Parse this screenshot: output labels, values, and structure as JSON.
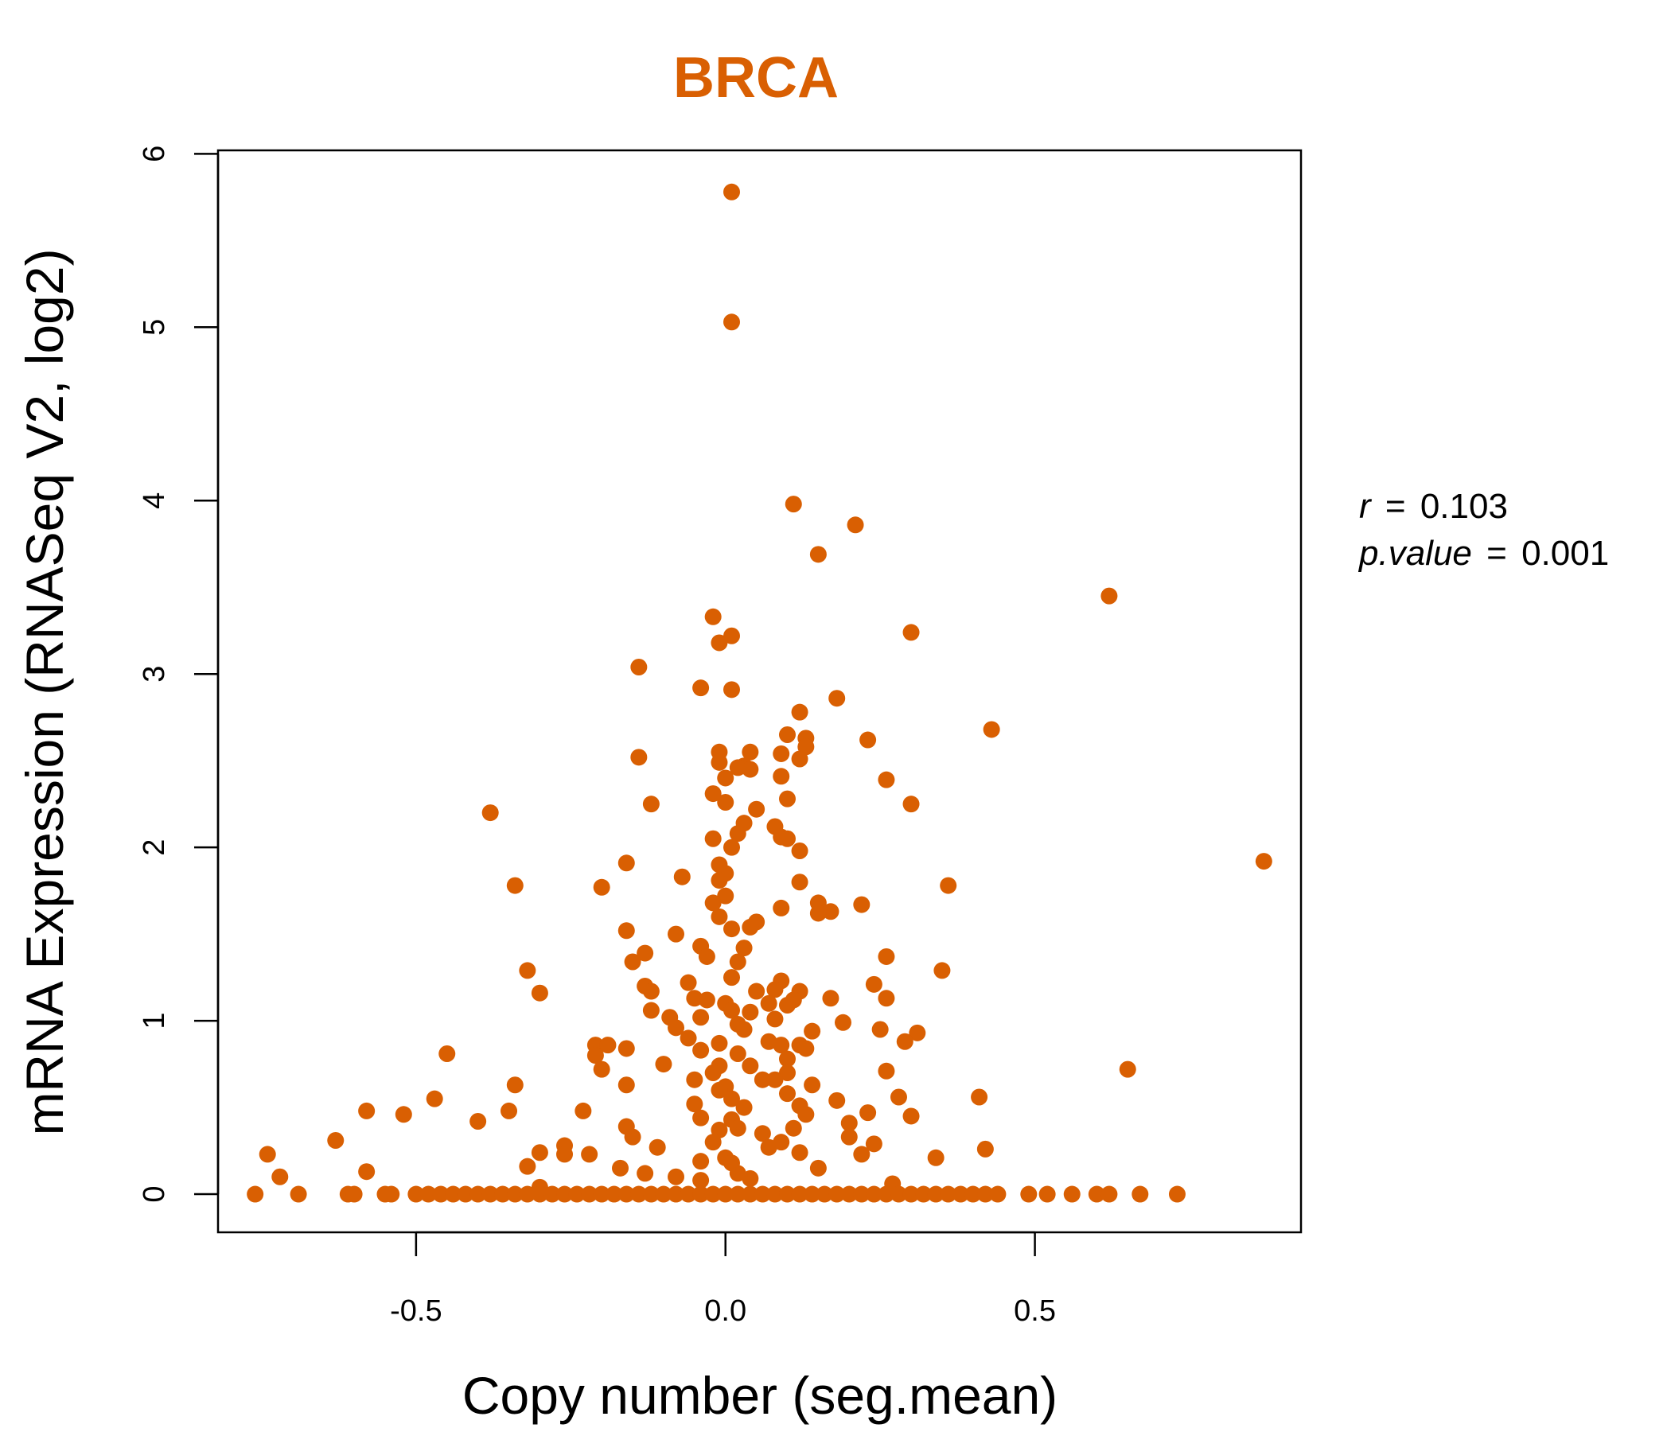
{
  "chart_data": {
    "type": "scatter",
    "title": "BRCA",
    "xlabel": "Copy number (seg.mean)",
    "ylabel": "mRNA Expression (RNASeq V2, log2)",
    "xlim": [
      -0.82,
      0.93
    ],
    "ylim": [
      -0.22,
      6.02
    ],
    "xticks": [
      -0.5,
      0.0,
      0.5
    ],
    "xtick_labels": [
      "-0.5",
      "0.0",
      "0.5"
    ],
    "yticks": [
      0,
      1,
      2,
      3,
      4,
      5,
      6
    ],
    "ytick_labels": [
      "0",
      "1",
      "2",
      "3",
      "4",
      "5",
      "6"
    ],
    "grid": false,
    "legend": "none",
    "color": "#D95F02",
    "annotation": {
      "r_label": "r",
      "r_value": "0.103",
      "p_label": "p.value",
      "p_value": "0.001"
    },
    "points": [
      [
        0.01,
        5.78
      ],
      [
        0.01,
        5.03
      ],
      [
        0.11,
        3.98
      ],
      [
        0.21,
        3.86
      ],
      [
        0.15,
        3.69
      ],
      [
        0.62,
        3.45
      ],
      [
        -0.02,
        3.33
      ],
      [
        0.01,
        3.22
      ],
      [
        -0.01,
        3.18
      ],
      [
        0.3,
        3.24
      ],
      [
        -0.14,
        3.04
      ],
      [
        -0.04,
        2.92
      ],
      [
        0.01,
        2.91
      ],
      [
        0.18,
        2.86
      ],
      [
        0.12,
        2.78
      ],
      [
        0.43,
        2.68
      ],
      [
        0.1,
        2.65
      ],
      [
        0.13,
        2.63
      ],
      [
        0.23,
        2.62
      ],
      [
        0.13,
        2.58
      ],
      [
        -0.01,
        2.55
      ],
      [
        0.04,
        2.55
      ],
      [
        0.09,
        2.54
      ],
      [
        -0.14,
        2.52
      ],
      [
        0.12,
        2.51
      ],
      [
        -0.01,
        2.49
      ],
      [
        0.03,
        2.47
      ],
      [
        0.02,
        2.46
      ],
      [
        0.04,
        2.45
      ],
      [
        0.0,
        2.4
      ],
      [
        0.09,
        2.41
      ],
      [
        0.26,
        2.39
      ],
      [
        -0.02,
        2.31
      ],
      [
        0.1,
        2.28
      ],
      [
        0.0,
        2.26
      ],
      [
        -0.12,
        2.25
      ],
      [
        0.3,
        2.25
      ],
      [
        -0.38,
        2.2
      ],
      [
        0.05,
        2.22
      ],
      [
        0.03,
        2.14
      ],
      [
        0.08,
        2.12
      ],
      [
        0.02,
        2.08
      ],
      [
        0.09,
        2.06
      ],
      [
        -0.02,
        2.05
      ],
      [
        0.1,
        2.05
      ],
      [
        0.01,
        2.0
      ],
      [
        0.12,
        1.98
      ],
      [
        0.87,
        1.92
      ],
      [
        -0.16,
        1.91
      ],
      [
        -0.01,
        1.9
      ],
      [
        0.0,
        1.85
      ],
      [
        -0.07,
        1.83
      ],
      [
        -0.01,
        1.81
      ],
      [
        0.12,
        1.8
      ],
      [
        -0.34,
        1.78
      ],
      [
        -0.2,
        1.77
      ],
      [
        0.36,
        1.78
      ],
      [
        0.0,
        1.72
      ],
      [
        -0.02,
        1.68
      ],
      [
        0.15,
        1.68
      ],
      [
        0.22,
        1.67
      ],
      [
        0.09,
        1.65
      ],
      [
        0.17,
        1.63
      ],
      [
        0.15,
        1.62
      ],
      [
        -0.01,
        1.6
      ],
      [
        0.05,
        1.57
      ],
      [
        0.01,
        1.53
      ],
      [
        0.04,
        1.54
      ],
      [
        -0.16,
        1.52
      ],
      [
        -0.08,
        1.5
      ],
      [
        0.03,
        1.42
      ],
      [
        -0.04,
        1.43
      ],
      [
        -0.13,
        1.39
      ],
      [
        0.26,
        1.37
      ],
      [
        -0.03,
        1.37
      ],
      [
        -0.15,
        1.34
      ],
      [
        0.02,
        1.34
      ],
      [
        0.35,
        1.29
      ],
      [
        -0.32,
        1.29
      ],
      [
        0.01,
        1.25
      ],
      [
        -0.06,
        1.22
      ],
      [
        0.24,
        1.21
      ],
      [
        0.09,
        1.23
      ],
      [
        -0.13,
        1.2
      ],
      [
        0.08,
        1.18
      ],
      [
        0.12,
        1.17
      ],
      [
        -0.12,
        1.17
      ],
      [
        0.05,
        1.17
      ],
      [
        -0.3,
        1.16
      ],
      [
        -0.05,
        1.13
      ],
      [
        0.17,
        1.13
      ],
      [
        0.26,
        1.13
      ],
      [
        -0.03,
        1.12
      ],
      [
        0.11,
        1.12
      ],
      [
        0.0,
        1.1
      ],
      [
        0.07,
        1.1
      ],
      [
        0.1,
        1.09
      ],
      [
        -0.12,
        1.06
      ],
      [
        0.01,
        1.06
      ],
      [
        0.04,
        1.05
      ],
      [
        -0.09,
        1.02
      ],
      [
        -0.04,
        1.02
      ],
      [
        0.08,
        1.01
      ],
      [
        0.19,
        0.99
      ],
      [
        0.02,
        0.98
      ],
      [
        -0.08,
        0.96
      ],
      [
        0.03,
        0.95
      ],
      [
        0.25,
        0.95
      ],
      [
        0.14,
        0.94
      ],
      [
        0.31,
        0.93
      ],
      [
        -0.06,
        0.9
      ],
      [
        0.07,
        0.88
      ],
      [
        0.29,
        0.88
      ],
      [
        -0.21,
        0.86
      ],
      [
        -0.19,
        0.86
      ],
      [
        0.12,
        0.86
      ],
      [
        -0.01,
        0.87
      ],
      [
        0.09,
        0.86
      ],
      [
        -0.16,
        0.84
      ],
      [
        0.13,
        0.84
      ],
      [
        -0.04,
        0.83
      ],
      [
        0.02,
        0.81
      ],
      [
        -0.45,
        0.81
      ],
      [
        -0.21,
        0.8
      ],
      [
        0.1,
        0.78
      ],
      [
        -0.1,
        0.75
      ],
      [
        -0.01,
        0.74
      ],
      [
        0.04,
        0.74
      ],
      [
        -0.2,
        0.72
      ],
      [
        0.26,
        0.71
      ],
      [
        0.65,
        0.72
      ],
      [
        -0.02,
        0.7
      ],
      [
        0.1,
        0.7
      ],
      [
        -0.05,
        0.66
      ],
      [
        0.06,
        0.66
      ],
      [
        0.08,
        0.66
      ],
      [
        -0.34,
        0.63
      ],
      [
        -0.16,
        0.63
      ],
      [
        0.14,
        0.63
      ],
      [
        0.0,
        0.62
      ],
      [
        -0.01,
        0.6
      ],
      [
        0.1,
        0.58
      ],
      [
        0.28,
        0.56
      ],
      [
        0.41,
        0.56
      ],
      [
        -0.47,
        0.55
      ],
      [
        0.01,
        0.55
      ],
      [
        0.18,
        0.54
      ],
      [
        -0.05,
        0.52
      ],
      [
        0.12,
        0.51
      ],
      [
        0.03,
        0.5
      ],
      [
        -0.58,
        0.48
      ],
      [
        -0.23,
        0.48
      ],
      [
        -0.35,
        0.48
      ],
      [
        0.23,
        0.47
      ],
      [
        -0.52,
        0.46
      ],
      [
        0.13,
        0.46
      ],
      [
        0.3,
        0.45
      ],
      [
        -0.04,
        0.44
      ],
      [
        0.01,
        0.43
      ],
      [
        -0.4,
        0.42
      ],
      [
        0.2,
        0.41
      ],
      [
        -0.16,
        0.39
      ],
      [
        0.02,
        0.38
      ],
      [
        0.11,
        0.38
      ],
      [
        -0.01,
        0.37
      ],
      [
        0.06,
        0.35
      ],
      [
        0.2,
        0.33
      ],
      [
        -0.15,
        0.33
      ],
      [
        -0.63,
        0.31
      ],
      [
        -0.02,
        0.3
      ],
      [
        0.09,
        0.3
      ],
      [
        0.24,
        0.29
      ],
      [
        -0.26,
        0.28
      ],
      [
        -0.11,
        0.27
      ],
      [
        0.07,
        0.27
      ],
      [
        0.42,
        0.26
      ],
      [
        -0.3,
        0.24
      ],
      [
        0.12,
        0.24
      ],
      [
        0.22,
        0.23
      ],
      [
        -0.74,
        0.23
      ],
      [
        -0.26,
        0.23
      ],
      [
        -0.22,
        0.23
      ],
      [
        0.0,
        0.21
      ],
      [
        0.34,
        0.21
      ],
      [
        -0.04,
        0.19
      ],
      [
        0.01,
        0.18
      ],
      [
        -0.32,
        0.16
      ],
      [
        -0.17,
        0.15
      ],
      [
        0.15,
        0.15
      ],
      [
        -0.58,
        0.13
      ],
      [
        -0.13,
        0.12
      ],
      [
        0.02,
        0.12
      ],
      [
        -0.72,
        0.1
      ],
      [
        -0.08,
        0.1
      ],
      [
        0.04,
        0.09
      ],
      [
        -0.04,
        0.08
      ],
      [
        0.27,
        0.06
      ],
      [
        -0.3,
        0.04
      ],
      [
        -0.76,
        0.0
      ],
      [
        -0.69,
        0.0
      ],
      [
        -0.61,
        0.0
      ],
      [
        -0.6,
        0.0
      ],
      [
        -0.55,
        0.0
      ],
      [
        -0.54,
        0.0
      ],
      [
        -0.5,
        0.0
      ],
      [
        -0.48,
        0.0
      ],
      [
        -0.46,
        0.0
      ],
      [
        -0.44,
        0.0
      ],
      [
        -0.42,
        0.0
      ],
      [
        -0.4,
        0.0
      ],
      [
        -0.38,
        0.0
      ],
      [
        -0.36,
        0.0
      ],
      [
        -0.34,
        0.0
      ],
      [
        -0.32,
        0.0
      ],
      [
        -0.3,
        0.0
      ],
      [
        -0.28,
        0.0
      ],
      [
        -0.26,
        0.0
      ],
      [
        -0.24,
        0.0
      ],
      [
        -0.22,
        0.0
      ],
      [
        -0.2,
        0.0
      ],
      [
        -0.18,
        0.0
      ],
      [
        -0.16,
        0.0
      ],
      [
        -0.14,
        0.0
      ],
      [
        -0.12,
        0.0
      ],
      [
        -0.1,
        0.0
      ],
      [
        -0.08,
        0.0
      ],
      [
        -0.06,
        0.0
      ],
      [
        -0.04,
        0.0
      ],
      [
        -0.02,
        0.0
      ],
      [
        0.0,
        0.0
      ],
      [
        0.02,
        0.0
      ],
      [
        0.04,
        0.0
      ],
      [
        0.06,
        0.0
      ],
      [
        0.08,
        0.0
      ],
      [
        0.1,
        0.0
      ],
      [
        0.12,
        0.0
      ],
      [
        0.14,
        0.0
      ],
      [
        0.16,
        0.0
      ],
      [
        0.18,
        0.0
      ],
      [
        0.2,
        0.0
      ],
      [
        0.22,
        0.0
      ],
      [
        0.24,
        0.0
      ],
      [
        0.26,
        0.0
      ],
      [
        0.28,
        0.0
      ],
      [
        0.3,
        0.0
      ],
      [
        0.32,
        0.0
      ],
      [
        0.34,
        0.0
      ],
      [
        0.36,
        0.0
      ],
      [
        0.38,
        0.0
      ],
      [
        0.4,
        0.0
      ],
      [
        0.42,
        0.0
      ],
      [
        0.44,
        0.0
      ],
      [
        0.49,
        0.0
      ],
      [
        0.52,
        0.0
      ],
      [
        0.56,
        0.0
      ],
      [
        0.6,
        0.0
      ],
      [
        0.62,
        0.0
      ],
      [
        0.67,
        0.0
      ],
      [
        0.73,
        0.0
      ]
    ]
  }
}
